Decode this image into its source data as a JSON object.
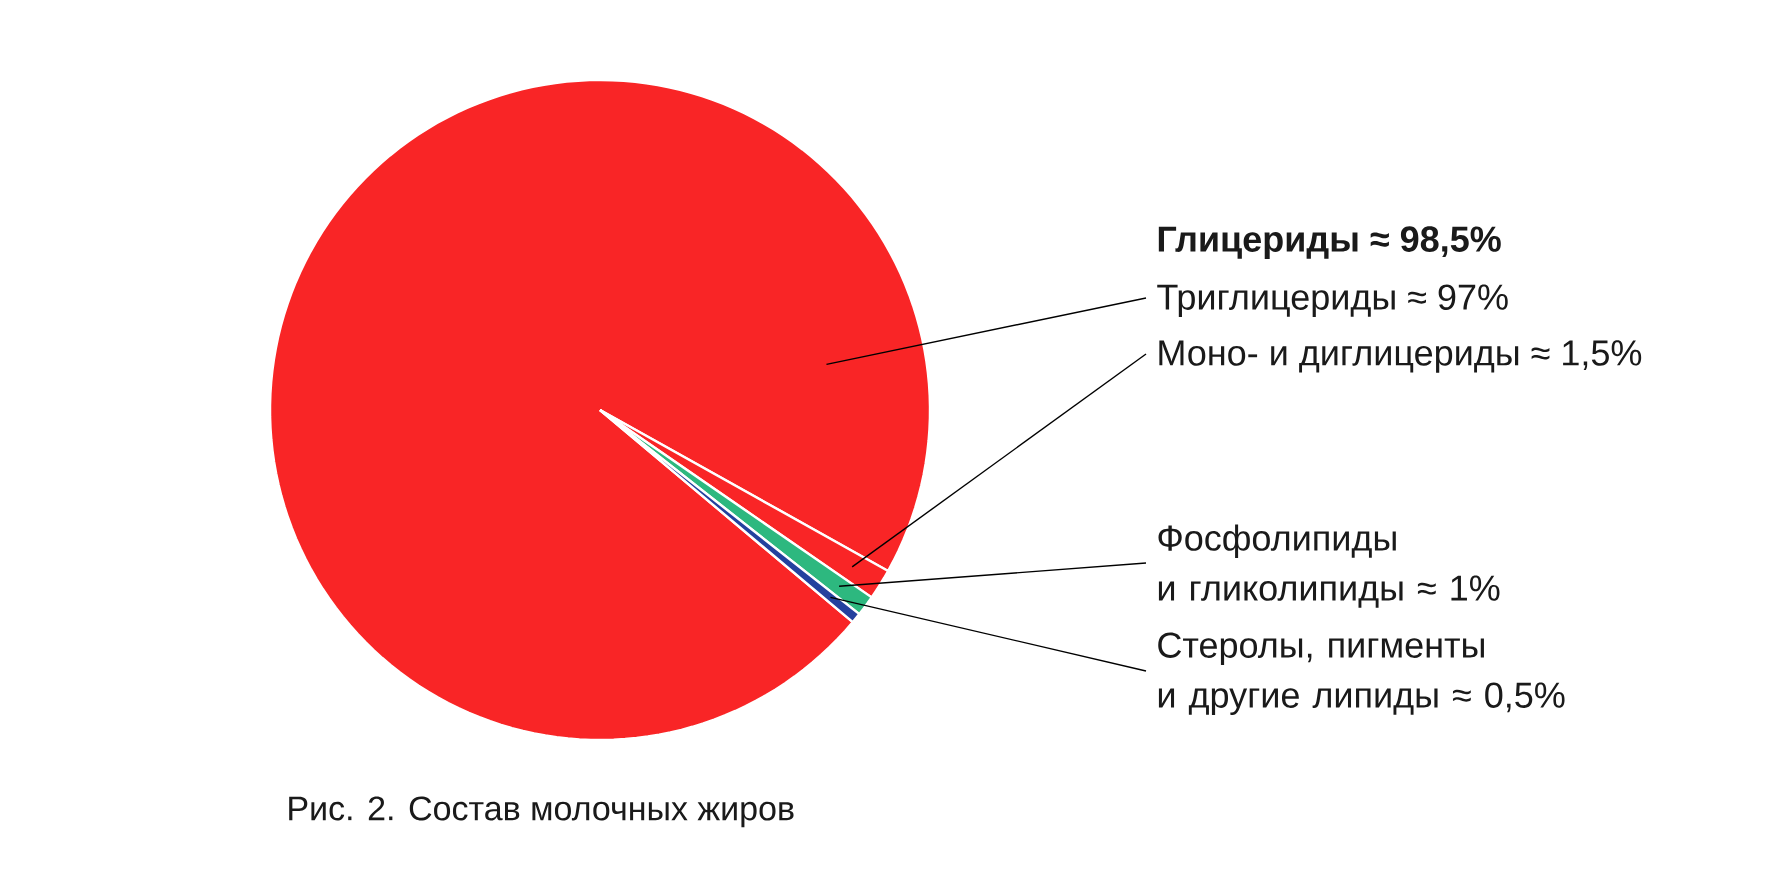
{
  "chart_data": {
    "type": "pie",
    "categories": [
      "Триглицериды",
      "Моно- и диглицериды",
      "Фосфолипиды и гликолипиды",
      "Стеролы, пигменты и другие липиды"
    ],
    "values": [
      97,
      1.5,
      1,
      0.5
    ],
    "value_labels": [
      "≈ 97%",
      "≈ 1,5%",
      "≈ 1%",
      "≈ 0,5%"
    ],
    "colors": [
      "#f92526",
      "#f92526",
      "#2db87f",
      "#24419e"
    ],
    "annotations": [
      "Глицериды ≈ 98,5%",
      "Рис. 2. Состав молочных жиров"
    ]
  }
}
